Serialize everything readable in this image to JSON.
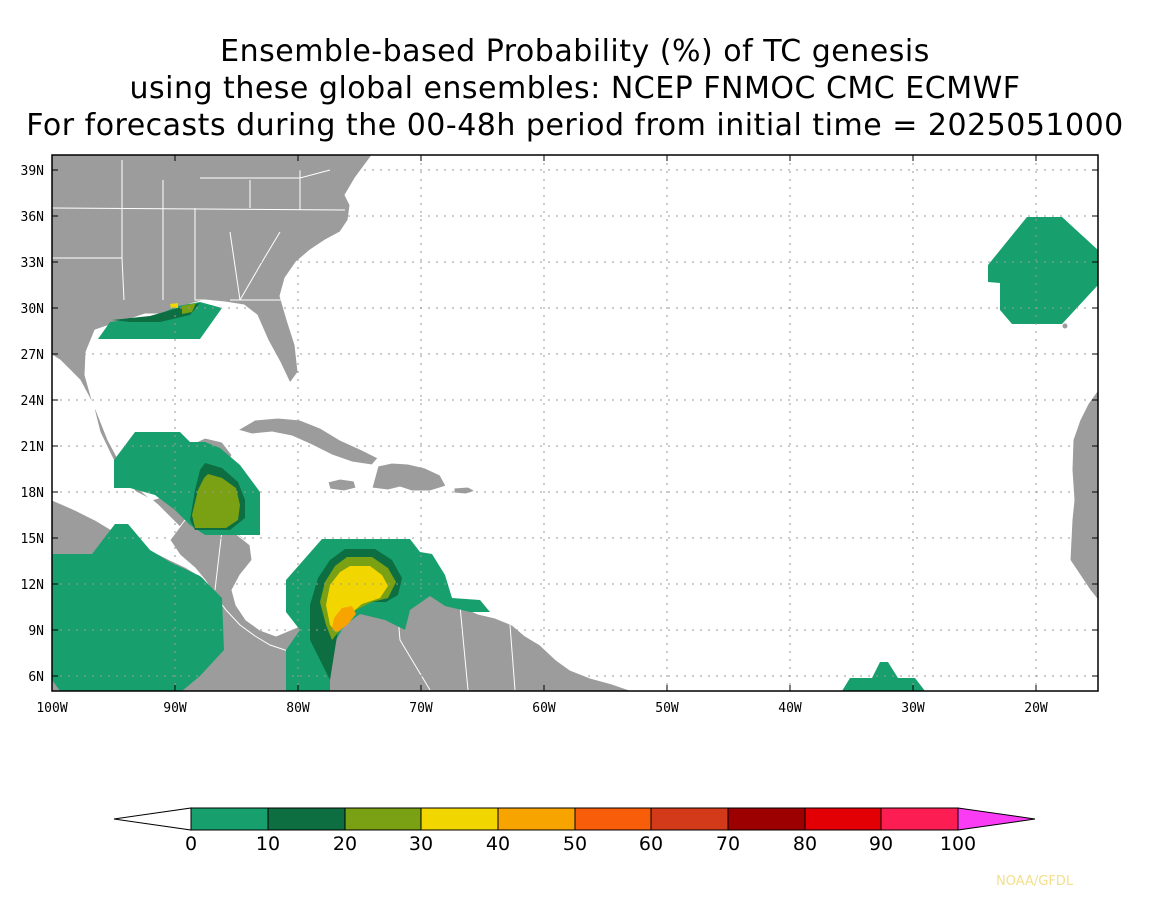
{
  "title": {
    "line1": "Ensemble-based Probability (%) of TC genesis",
    "line2": "using these global ensembles:   NCEP FNMOC CMC ECMWF",
    "line3": "For forecasts during the 00-48h period from initial time = 2025051000"
  },
  "axes": {
    "lat_labels": [
      "39N",
      "36N",
      "33N",
      "30N",
      "27N",
      "24N",
      "21N",
      "18N",
      "15N",
      "12N",
      "9N",
      "6N"
    ],
    "lon_labels": [
      "100W",
      "90W",
      "80W",
      "70W",
      "60W",
      "50W",
      "40W",
      "30W",
      "20W"
    ],
    "lat_range": [
      5,
      40
    ],
    "lon_range": [
      -100,
      -15
    ]
  },
  "colorbar": {
    "labels": [
      "0",
      "10",
      "20",
      "30",
      "40",
      "50",
      "60",
      "70",
      "80",
      "90",
      "100"
    ],
    "colors": [
      "#17a06e",
      "#0d6e42",
      "#7aa013",
      "#f2d600",
      "#f8a400",
      "#f85e0a",
      "#d23a1a",
      "#9c0000",
      "#e20005",
      "#fc1d52"
    ],
    "over_color": "#fa3cf5",
    "under_color": "#ffffff"
  },
  "colors": {
    "land": "#9c9c9c",
    "land_border": "#ffffff",
    "grid": "#9a9a9a"
  },
  "genesis_regions": [
    "Azores (33N 20W)",
    "Northern Gulf coast (29N 88W)",
    "Yucatan / Gulf of Honduras (18N 86W)",
    "Eastern Pacific (10N 95W)",
    "Southwestern Caribbean (12N 75W)",
    "Central Atlantic (6N 33W)"
  ],
  "credit": "NOAA/GFDL"
}
